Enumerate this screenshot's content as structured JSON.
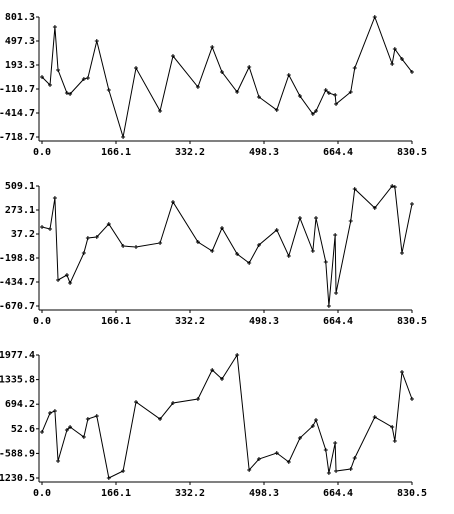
{
  "chart_data": [
    {
      "type": "line",
      "x": [
        0,
        18,
        29,
        36,
        56,
        63,
        94,
        103,
        123,
        150,
        182,
        211,
        265,
        294,
        350,
        382,
        404,
        438,
        465,
        487,
        527,
        554,
        579,
        608,
        615,
        637,
        644,
        658,
        660,
        693,
        702,
        747,
        786,
        792,
        808,
        830.5
      ],
      "values": [
        41.3,
        -60,
        674,
        130,
        -162,
        -174,
        16,
        29,
        497,
        -124,
        -718.7,
        155,
        -390,
        307,
        -86,
        421,
        104,
        -149,
        168,
        -212,
        -377,
        67,
        -200,
        -428,
        -390,
        -124,
        -162,
        -187,
        -301,
        -149,
        155,
        801.3,
        206,
        396,
        269,
        104
      ],
      "color": "#000000",
      "xlim": [
        0,
        830.5
      ],
      "xticks": [
        {
          "value": 0,
          "label": "0.0"
        },
        166.1,
        332.2,
        498.3,
        664.4,
        830.5
      ],
      "ylim": [
        -718.7,
        801.3
      ],
      "yticks": [
        801.3,
        497.3,
        193.3,
        -110.7,
        -414.7,
        -718.7
      ]
    },
    {
      "type": "line",
      "x": [
        0,
        18,
        29,
        36,
        56,
        63,
        94,
        103,
        123,
        150,
        182,
        211,
        265,
        294,
        350,
        382,
        404,
        438,
        465,
        487,
        527,
        554,
        579,
        608,
        615,
        637,
        644,
        658,
        660,
        693,
        702,
        747,
        786,
        792,
        808,
        830.5
      ],
      "values": [
        106,
        86,
        391,
        -415,
        -366,
        -445,
        -150,
        -2,
        8,
        136,
        -81,
        -91,
        -51,
        352,
        -42,
        -130,
        96,
        -160,
        -248,
        -71,
        77,
        -179,
        194,
        -130,
        194,
        -238,
        -670.7,
        27,
        -543,
        165,
        480,
        293,
        509.1,
        499,
        -150,
        332
      ],
      "color": "#000000",
      "xlim": [
        0,
        830.5
      ],
      "xticks": [
        {
          "value": 0,
          "label": "0.0"
        },
        166.1,
        332.2,
        498.3,
        664.4,
        830.5
      ],
      "ylim": [
        -670.7,
        509.1
      ],
      "yticks": [
        509.1,
        273.1,
        37.2,
        -198.8,
        -434.7,
        -670.7
      ]
    },
    {
      "type": "line",
      "x": [
        0,
        18,
        29,
        36,
        56,
        63,
        94,
        103,
        123,
        150,
        182,
        211,
        265,
        294,
        350,
        382,
        404,
        438,
        465,
        487,
        527,
        554,
        579,
        608,
        615,
        637,
        644,
        658,
        660,
        693,
        702,
        747,
        786,
        792,
        808,
        830.5
      ],
      "values": [
        -31,
        464,
        517,
        -787,
        21,
        99,
        -161,
        308,
        386,
        -1230.5,
        -1048,
        752,
        308,
        725,
        830,
        1586,
        1351,
        1977.4,
        -1022,
        -735,
        -579,
        -813,
        -187,
        126,
        282,
        -500,
        -1100,
        -318,
        -1048,
        -996,
        -709,
        360,
        99,
        -266,
        1534,
        830
      ],
      "color": "#000000",
      "xlim": [
        0,
        830.5
      ],
      "xticks": [
        {
          "value": 0,
          "label": "0.0"
        },
        166.1,
        332.2,
        498.3,
        664.4,
        830.5
      ],
      "ylim": [
        -1230.5,
        1977.4
      ],
      "yticks": [
        1977.4,
        1335.8,
        694.2,
        52.6,
        -588.9,
        -1230.5
      ]
    }
  ]
}
